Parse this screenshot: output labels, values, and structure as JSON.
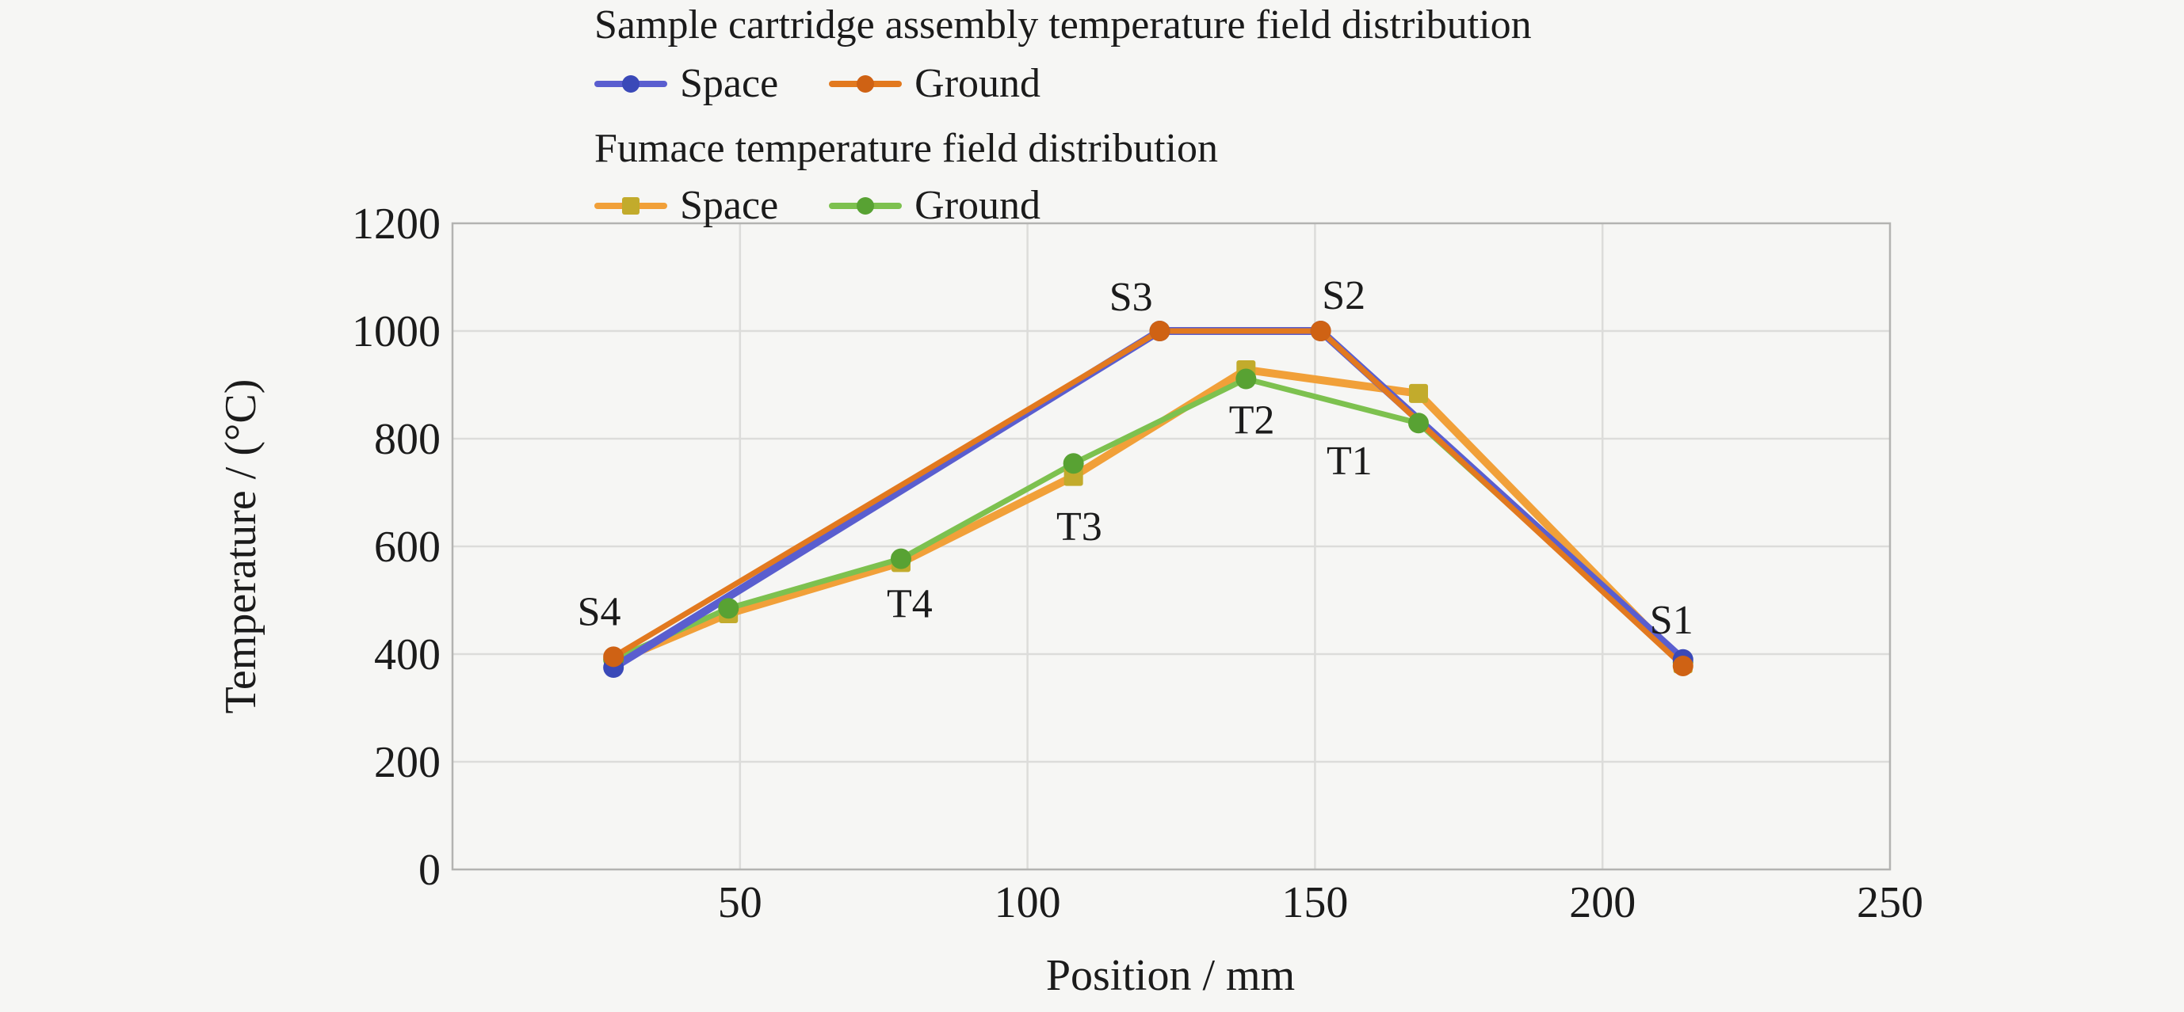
{
  "header": {
    "groups": [
      {
        "title": "Sample cartridge assembly temperature field distribution",
        "items": [
          {
            "label": "Space",
            "line_color": "#5a5ecf",
            "marker_color": "#3a49b8",
            "marker": "circle"
          },
          {
            "label": "Ground",
            "line_color": "#e2791f",
            "marker_color": "#cf6214",
            "marker": "circle"
          }
        ]
      },
      {
        "title": "Fumace temperature field distribution",
        "items": [
          {
            "label": "Space",
            "line_color": "#f1a039",
            "marker_color": "#c2ab2c",
            "marker": "square"
          },
          {
            "label": "Ground",
            "line_color": "#7dc14f",
            "marker_color": "#58a233",
            "marker": "circle"
          }
        ]
      }
    ]
  },
  "chart_data": {
    "type": "line",
    "title": "",
    "xlabel": "Position / mm",
    "ylabel": "Temperature / (°C)",
    "xlim": [
      0,
      250
    ],
    "ylim": [
      0,
      1200
    ],
    "x_ticks": [
      50,
      100,
      150,
      200,
      250
    ],
    "y_ticks": [
      0,
      200,
      400,
      600,
      800,
      1000,
      1200
    ],
    "grid": true,
    "legend_position": "top-left",
    "colors": {
      "background": "#f6f6f4",
      "frame": "#b3b3b1",
      "gridline": "#dcdcda",
      "text": "#1b1b1b"
    },
    "series": [
      {
        "name": "Furnace Space",
        "group": "Fumace temperature field distribution",
        "label": "Space",
        "line_color": "#f1a039",
        "marker_color": "#c2ab2c",
        "marker": "square",
        "line_width": 10,
        "points": [
          [
            28,
            385
          ],
          [
            48,
            475
          ],
          [
            78,
            570
          ],
          [
            108,
            730
          ],
          [
            138,
            928
          ],
          [
            168,
            884
          ],
          [
            214,
            382
          ]
        ]
      },
      {
        "name": "Furnace Ground",
        "group": "Fumace temperature field distribution",
        "label": "Ground",
        "line_color": "#7dc14f",
        "marker_color": "#58a233",
        "marker": "circle",
        "line_width": 7,
        "points": [
          [
            28,
            390
          ],
          [
            48,
            485
          ],
          [
            78,
            577
          ],
          [
            108,
            754
          ],
          [
            138,
            911
          ],
          [
            168,
            829
          ],
          [
            214,
            385
          ]
        ]
      },
      {
        "name": "Sample cartridge Space",
        "group": "Sample cartridge assembly temperature field distribution",
        "label": "Space",
        "line_color": "#5a5ecf",
        "marker_color": "#3a49b8",
        "marker": "circle",
        "line_width": 10,
        "points": [
          [
            28,
            375
          ],
          [
            123,
            1000
          ],
          [
            151,
            1000
          ],
          [
            214,
            390
          ]
        ]
      },
      {
        "name": "Sample cartridge Ground",
        "group": "Sample cartridge assembly temperature field distribution",
        "label": "Ground",
        "line_color": "#e2791f",
        "marker_color": "#cf6214",
        "marker": "circle",
        "line_width": 7,
        "points": [
          [
            28,
            395
          ],
          [
            123,
            1000
          ],
          [
            151,
            1000
          ],
          [
            214,
            378
          ]
        ]
      }
    ],
    "annotations": [
      {
        "text": "S4",
        "x": 25.5,
        "y": 480
      },
      {
        "text": "T4",
        "x": 79.5,
        "y": 495
      },
      {
        "text": "T3",
        "x": 109,
        "y": 638
      },
      {
        "text": "T2",
        "x": 139,
        "y": 836
      },
      {
        "text": "T1",
        "x": 156,
        "y": 760
      },
      {
        "text": "S3",
        "x": 118,
        "y": 1065
      },
      {
        "text": "S2",
        "x": 155,
        "y": 1068
      },
      {
        "text": "S1",
        "x": 212,
        "y": 465
      }
    ]
  }
}
